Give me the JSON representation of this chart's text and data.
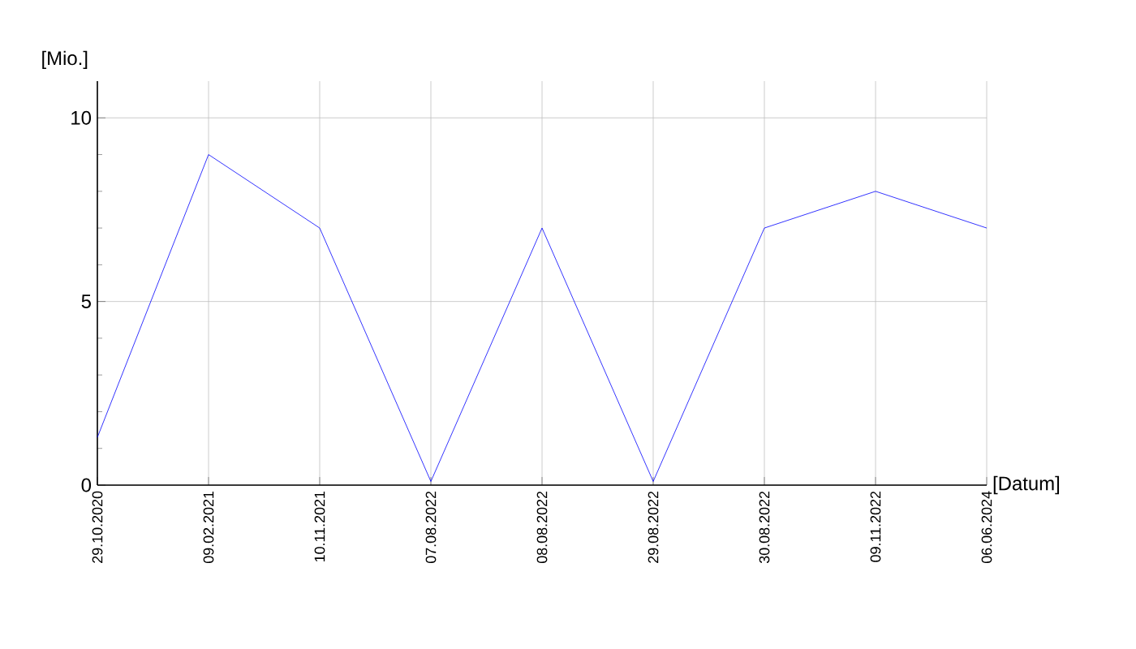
{
  "chart_data": {
    "type": "line",
    "xlabel": "[Datum]",
    "ylabel": "[Mio.]",
    "categories": [
      "29.10.2020",
      "09.02.2021",
      "10.11.2021",
      "07.08.2022",
      "08.08.2022",
      "29.08.2022",
      "30.08.2022",
      "09.11.2022",
      "06.06.2024"
    ],
    "series": [
      {
        "color": "#0000ff",
        "values": [
          1.3,
          9,
          7,
          0.1,
          7,
          0.1,
          7,
          8,
          7
        ]
      }
    ],
    "ylim": [
      0,
      11
    ],
    "yticks": [
      0,
      5,
      10
    ],
    "grid": true,
    "marker": "none",
    "line_style": "solid"
  }
}
